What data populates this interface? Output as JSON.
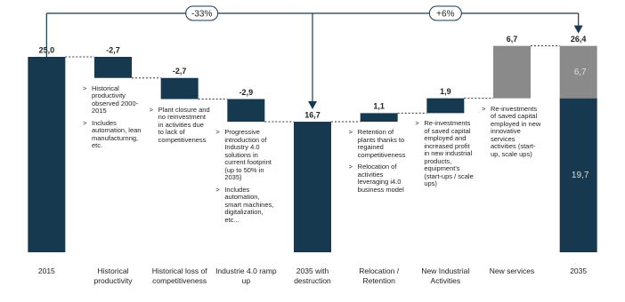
{
  "chart_data": {
    "type": "waterfall",
    "categories": [
      "2015",
      "Historical productivity",
      "Historical loss of competitiveness",
      "Industrie 4.0 ramp up",
      "2035 with destruction",
      "Relocation / Retention",
      "New Industrial Activities",
      "New services",
      "2035"
    ],
    "values": [
      25.0,
      -2.7,
      -2.7,
      -2.9,
      16.7,
      1.1,
      1.9,
      6.7,
      26.4
    ],
    "value_labels": [
      "25,0",
      "-2,7",
      "-2,7",
      "-2,9",
      "16,7",
      "1,1",
      "1,9",
      "6,7",
      "26,4"
    ],
    "totals": [
      true,
      false,
      false,
      false,
      true,
      false,
      false,
      false,
      true
    ],
    "colors": [
      "#17394f",
      "#17394f",
      "#17394f",
      "#17394f",
      "#17394f",
      "#17394f",
      "#17394f",
      "#8a8a8a",
      "#17394f"
    ],
    "stack": {
      "index": 8,
      "values": [
        19.7,
        6.7
      ],
      "value_labels": [
        "19,7",
        "6,7"
      ],
      "colors": [
        "#17394f",
        "#8a8a8a"
      ]
    },
    "notes": [
      [],
      [
        "Historical productivity observed 2000-2015",
        "Includes automation, lean manufacturnng, etc."
      ],
      [
        "Plant closure and no reinvestment in activities due to lack of competitiveness"
      ],
      [
        "Progressive introduction of Industry 4.0 solutions in current footprint (up to 50% in 2035)",
        "Includes automation, smart machines, digitalization, etc..."
      ],
      [],
      [
        "Retention of plants thanks to regained competitiveness",
        "Relocation of activities leveraging i4.0 business model"
      ],
      [
        "Re-investments of saved capital employed and increased profit in new industrial products, equipment's (start-ups / scale ups)"
      ],
      [
        "Re-investments of saved capital employed in new innovative services activities (start-up, scale ups)"
      ],
      []
    ],
    "annotations": [
      "-33%",
      "+6%"
    ],
    "ylim": [
      0,
      30
    ]
  }
}
